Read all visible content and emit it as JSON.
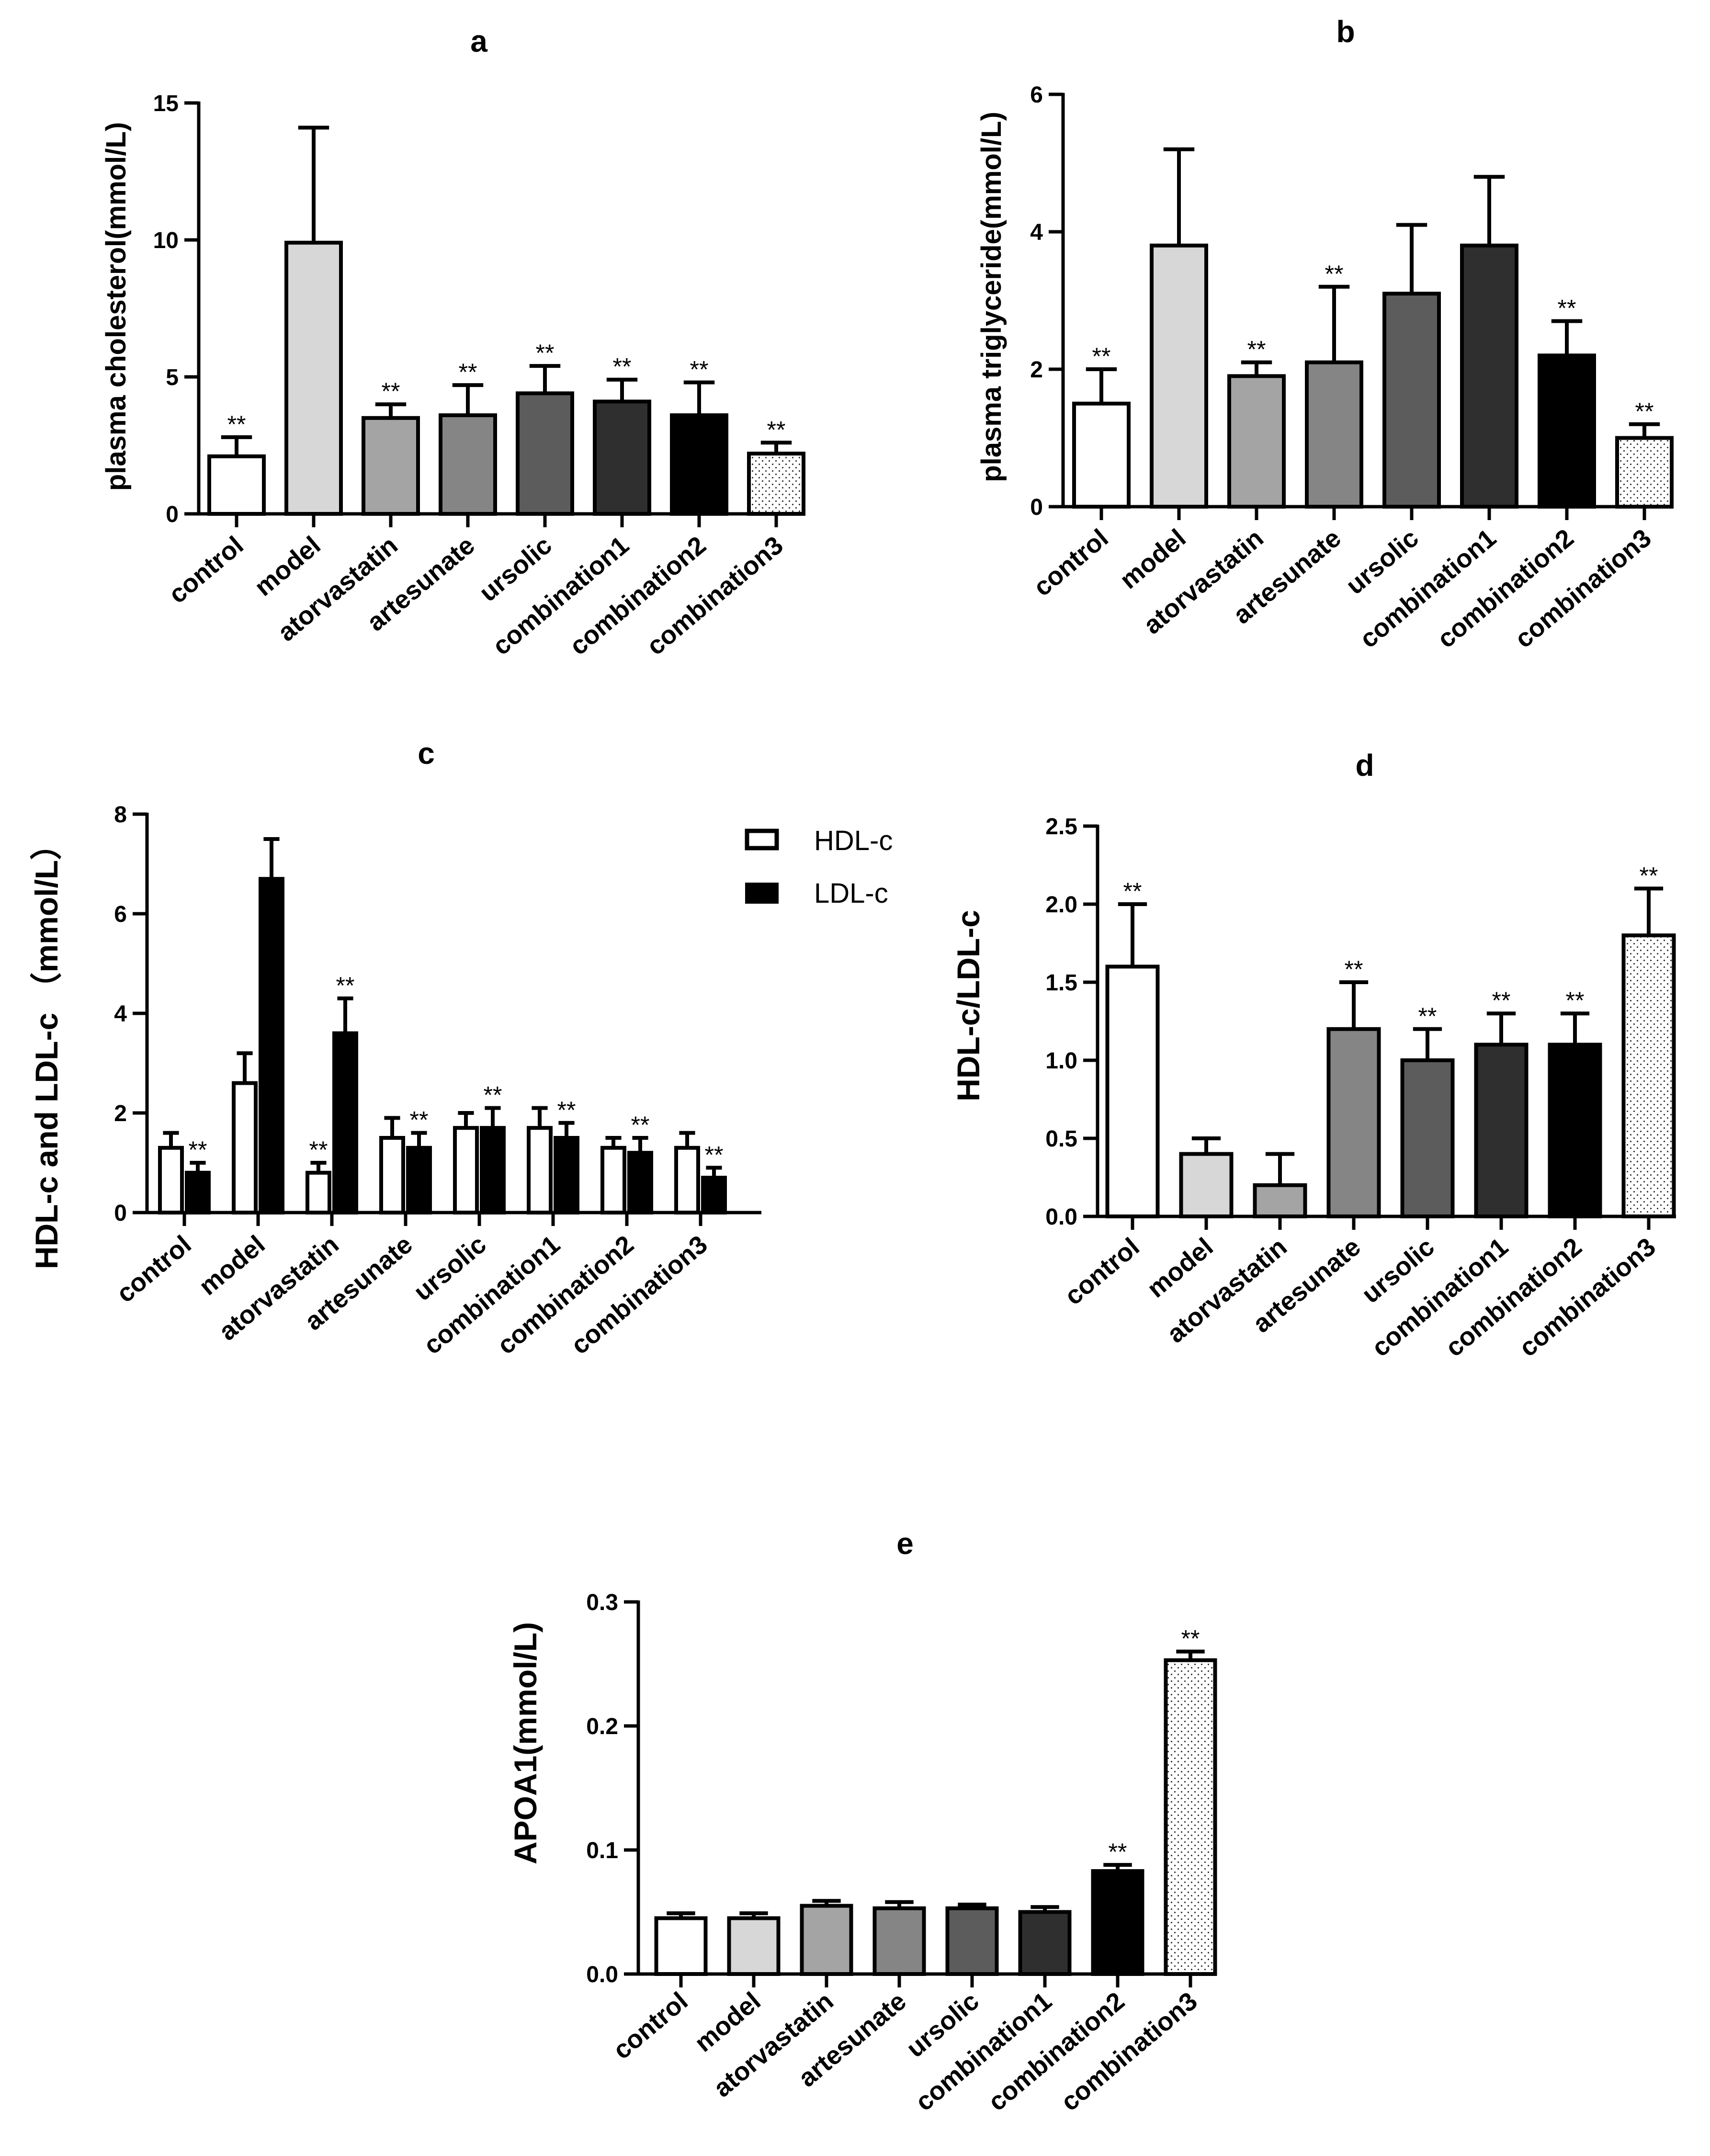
{
  "patterns": {
    "control": "#ffffff",
    "model": "#d7d7d7",
    "atorvastatin": "#a4a4a4",
    "artesunate": "#858585",
    "ursolic": "#5c5c5c",
    "combination1": "#2f2f2f",
    "combination2": "#000000",
    "combination3": "dotted"
  },
  "chart_data": [
    {
      "panel": "a",
      "type": "bar",
      "title": "a",
      "ylabel": "plasma cholesterol(mmol/L)",
      "ylim": [
        0,
        15
      ],
      "yticks": [
        0,
        5,
        10,
        15
      ],
      "categories": [
        "control",
        "model",
        "atorvastatin",
        "artesunate",
        "ursolic",
        "combination1",
        "combination2",
        "combination3"
      ],
      "values": [
        2.1,
        9.9,
        3.5,
        3.6,
        4.4,
        4.1,
        3.6,
        2.2
      ],
      "errors": [
        0.7,
        4.2,
        0.5,
        1.1,
        1.0,
        0.8,
        1.2,
        0.4
      ],
      "significance": [
        "**",
        "",
        "**",
        "**",
        "**",
        "**",
        "**",
        "**"
      ]
    },
    {
      "panel": "b",
      "type": "bar",
      "title": "b",
      "ylabel": "plasma triglyceride(mmol/L)",
      "ylim": [
        0,
        6
      ],
      "yticks": [
        0,
        2,
        4,
        6
      ],
      "categories": [
        "control",
        "model",
        "atorvastatin",
        "artesunate",
        "ursolic",
        "combination1",
        "combination2",
        "combination3"
      ],
      "values": [
        1.5,
        3.8,
        1.9,
        2.1,
        3.1,
        3.8,
        2.2,
        1.0
      ],
      "errors": [
        0.5,
        1.4,
        0.2,
        1.1,
        1.0,
        1.0,
        0.5,
        0.2
      ],
      "significance": [
        "**",
        "",
        "**",
        "**",
        "",
        "",
        "**",
        "**"
      ]
    },
    {
      "panel": "c",
      "type": "bar",
      "title": "c",
      "ylabel": "HDL-c and LDL-c （mmol/L）",
      "ylim": [
        0,
        8
      ],
      "yticks": [
        0,
        2,
        4,
        6,
        8
      ],
      "categories": [
        "control",
        "model",
        "atorvastatin",
        "artesunate",
        "ursolic",
        "combination1",
        "combination2",
        "combination3"
      ],
      "legend": [
        "HDL-c",
        "LDL-c"
      ],
      "series": [
        {
          "name": "HDL-c",
          "values": [
            1.3,
            2.6,
            0.8,
            1.5,
            1.7,
            1.7,
            1.3,
            1.3
          ],
          "errors": [
            0.3,
            0.6,
            0.2,
            0.4,
            0.3,
            0.4,
            0.2,
            0.3
          ],
          "significance": [
            "",
            "",
            "**",
            "",
            "",
            "",
            "",
            ""
          ]
        },
        {
          "name": "LDL-c",
          "values": [
            0.8,
            6.7,
            3.6,
            1.3,
            1.7,
            1.5,
            1.2,
            0.7
          ],
          "errors": [
            0.2,
            0.8,
            0.7,
            0.3,
            0.4,
            0.3,
            0.3,
            0.2
          ],
          "significance": [
            "**",
            "",
            "**",
            "**",
            "**",
            "**",
            "**",
            "**"
          ]
        }
      ]
    },
    {
      "panel": "d",
      "type": "bar",
      "title": "d",
      "ylabel": "HDL-c/LDL-c",
      "ylim": [
        0,
        2.5
      ],
      "yticks": [
        0.0,
        0.5,
        1.0,
        1.5,
        2.0,
        2.5
      ],
      "tick_labels": [
        "0.0",
        "0.5",
        "1.0",
        "1.5",
        "2.0",
        "2.5"
      ],
      "categories": [
        "control",
        "model",
        "atorvastatin",
        "artesunate",
        "ursolic",
        "combination1",
        "combination2",
        "combination3"
      ],
      "values": [
        1.6,
        0.4,
        0.2,
        1.2,
        1.0,
        1.1,
        1.1,
        1.8
      ],
      "errors": [
        0.4,
        0.1,
        0.2,
        0.3,
        0.2,
        0.2,
        0.2,
        0.3
      ],
      "significance": [
        "**",
        "",
        "",
        "**",
        "**",
        "**",
        "**",
        "**"
      ]
    },
    {
      "panel": "e",
      "type": "bar",
      "title": "e",
      "ylabel": "APOA1(mmol/L)",
      "ylim": [
        0,
        0.3
      ],
      "yticks": [
        0.0,
        0.1,
        0.2,
        0.3
      ],
      "tick_labels": [
        "0.0",
        "0.1",
        "0.2",
        "0.3"
      ],
      "categories": [
        "control",
        "model",
        "atorvastatin",
        "artesunate",
        "ursolic",
        "combination1",
        "combination2",
        "combination3"
      ],
      "values": [
        0.045,
        0.045,
        0.055,
        0.053,
        0.053,
        0.05,
        0.083,
        0.253
      ],
      "errors": [
        0.004,
        0.004,
        0.004,
        0.005,
        0.003,
        0.004,
        0.005,
        0.007
      ],
      "significance": [
        "",
        "",
        "",
        "",
        "",
        "",
        "**",
        "**"
      ]
    }
  ]
}
